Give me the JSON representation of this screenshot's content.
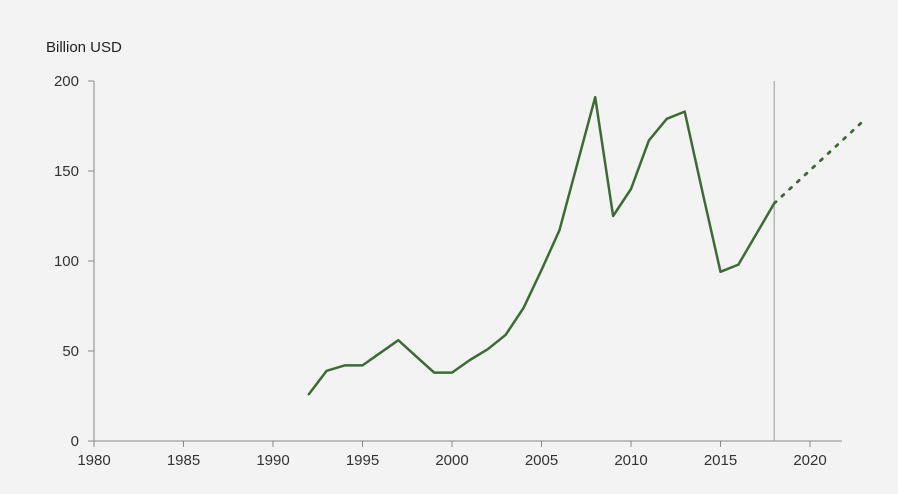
{
  "chart_data": {
    "type": "line",
    "ylabel": "Billion USD",
    "xlim": [
      1980,
      2022
    ],
    "ylim": [
      0,
      200
    ],
    "x_ticks": [
      1980,
      1985,
      1990,
      1995,
      2000,
      2005,
      2010,
      2015,
      2020
    ],
    "y_ticks": [
      0,
      50,
      100,
      150,
      200
    ],
    "grid": false,
    "legend": "none",
    "reference_line": {
      "x": 2018
    },
    "series": [
      {
        "style": "solid",
        "color": "#3d6b35",
        "x": [
          1992,
          1993,
          1994,
          1995,
          1996,
          1997,
          1998,
          1999,
          2000,
          2001,
          2002,
          2003,
          2004,
          2005,
          2006,
          2007,
          2008,
          2009,
          2010,
          2011,
          2012,
          2013,
          2014,
          2015,
          2016,
          2017,
          2018
        ],
        "y": [
          26,
          39,
          42,
          42,
          49,
          56,
          47,
          38,
          38,
          45,
          51,
          59,
          74,
          95,
          117,
          154,
          191,
          125,
          140,
          167,
          179,
          183,
          138,
          94,
          98,
          115,
          132
        ]
      },
      {
        "style": "dotted",
        "color": "#3d6b35",
        "x": [
          2018,
          2023
        ],
        "y": [
          132,
          178
        ]
      }
    ]
  }
}
